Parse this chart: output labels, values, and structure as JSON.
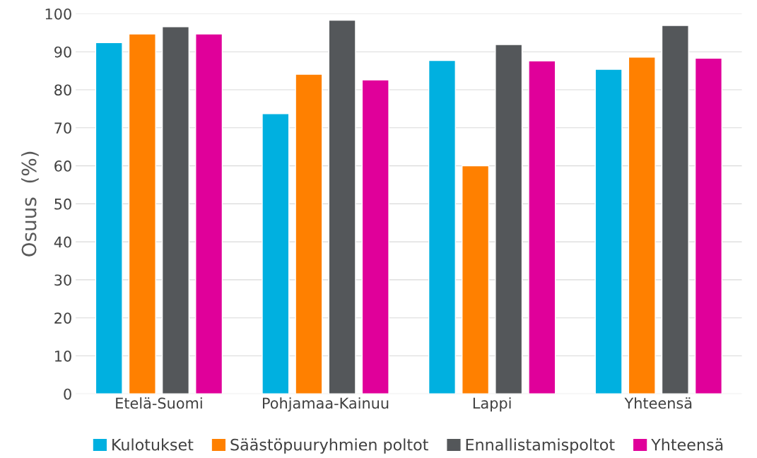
{
  "chart_data": {
    "type": "bar",
    "ylabel": "Osuus  (%)",
    "categories": [
      "Etelä-Suomi",
      "Pohjamaa-Kainuu",
      "Lappi",
      "Yhteensä"
    ],
    "series": [
      {
        "name": "Kulotukset",
        "color": "#00b0e0",
        "values": [
          92.4,
          73.7,
          87.7,
          85.4
        ]
      },
      {
        "name": "Säästöpuuryhmien poltot",
        "color": "#ff8000",
        "values": [
          94.7,
          84.1,
          60.0,
          88.6
        ]
      },
      {
        "name": "Ennallistamispoltot",
        "color": "#54575a",
        "values": [
          96.6,
          98.3,
          91.9,
          96.9
        ]
      },
      {
        "name": "Yhteensä",
        "color": "#e0009a",
        "values": [
          94.7,
          82.6,
          87.6,
          88.3
        ]
      }
    ],
    "ylim": [
      0,
      100
    ],
    "yticks": [
      0,
      10,
      20,
      30,
      40,
      50,
      60,
      70,
      80,
      90,
      100
    ],
    "grid": "y",
    "legend": "bottom"
  }
}
